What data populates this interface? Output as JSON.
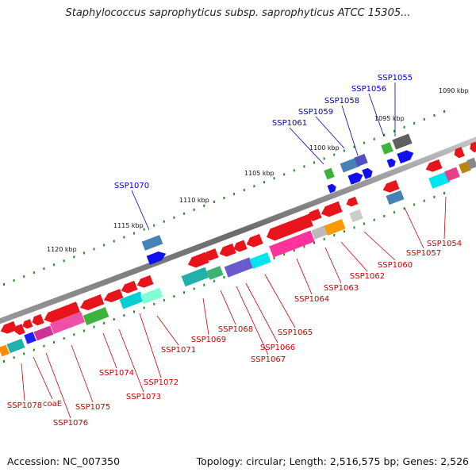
{
  "title": "Staphylococcus saprophyticus subsp. saprophyticus ATCC 15305...",
  "footer": {
    "accession": "Accession: NC_007350",
    "summary": "Topology: circular; Length: 2,516,575 bp; Genes: 2,526"
  },
  "colors": {
    "forward_label": "#0000cc",
    "reverse_label": "#cc0000",
    "backbone": "#777777",
    "tick": "#228b22"
  },
  "kbp_labels": [
    "1090 kbp",
    "1095 kbp",
    "1100 kbp",
    "1105 kbp",
    "1110 kbp",
    "1115 kbp",
    "1120 kbp"
  ],
  "forward_genes": [
    "SSP1055",
    "SSP1056",
    "SSP1058",
    "SSP1059",
    "SSP1061",
    "SSP1070"
  ],
  "reverse_genes": [
    "SSP1054",
    "SSP1057",
    "SSP1060",
    "SSP1062",
    "SSP1063",
    "SSP1064",
    "SSP1065",
    "SSP1066",
    "SSP1067",
    "SSP1068",
    "SSP1069",
    "SSP1071",
    "SSP1072",
    "SSP1073",
    "SSP1074",
    "SSP1075",
    "SSP1076",
    "coaE",
    "SSP1078"
  ]
}
